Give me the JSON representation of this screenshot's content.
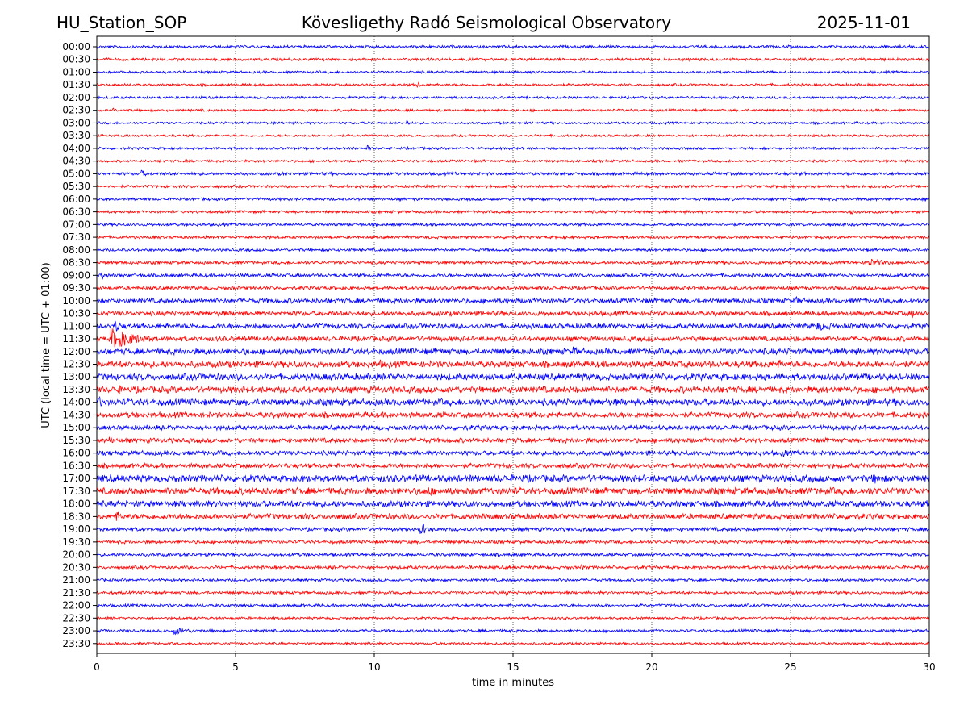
{
  "header": {
    "station": "HU_Station_SOP",
    "observatory": "Kövesligethy Radó Seismological Observatory",
    "date": "2025-11-01"
  },
  "chart_data": {
    "type": "line",
    "title": "Kövesligethy Radó Seismological Observatory",
    "xlabel": "time in minutes",
    "ylabel": "UTC (local time = UTC + 01:00)",
    "xlim": [
      0,
      30
    ],
    "x_ticks": [
      0,
      5,
      10,
      15,
      20,
      25,
      30
    ],
    "x_tick_labels": [
      "0",
      "5",
      "10",
      "15",
      "20",
      "25",
      "30"
    ],
    "grid": "vertical dotted lines at x ticks",
    "series_colors": [
      "#0000ff",
      "#ff0000"
    ],
    "rows": [
      {
        "label": "00:00",
        "amplitude": 0.18,
        "events": []
      },
      {
        "label": "00:30",
        "amplitude": 0.18,
        "events": []
      },
      {
        "label": "01:00",
        "amplitude": 0.16,
        "events": []
      },
      {
        "label": "01:30",
        "amplitude": 0.16,
        "events": [
          {
            "t": 11.6,
            "amp": 0.35,
            "dur": 0.2
          }
        ]
      },
      {
        "label": "02:00",
        "amplitude": 0.16,
        "events": []
      },
      {
        "label": "02:30",
        "amplitude": 0.16,
        "events": [
          {
            "t": 0.6,
            "amp": 0.35,
            "dur": 0.3
          }
        ]
      },
      {
        "label": "03:00",
        "amplitude": 0.15,
        "events": [
          {
            "t": 11.2,
            "amp": 0.3,
            "dur": 0.4
          }
        ]
      },
      {
        "label": "03:30",
        "amplitude": 0.15,
        "events": []
      },
      {
        "label": "04:00",
        "amplitude": 0.16,
        "events": [
          {
            "t": 9.8,
            "amp": 0.35,
            "dur": 0.2
          }
        ]
      },
      {
        "label": "04:30",
        "amplitude": 0.16,
        "events": []
      },
      {
        "label": "05:00",
        "amplitude": 0.2,
        "events": [
          {
            "t": 1.6,
            "amp": 0.45,
            "dur": 0.5
          }
        ]
      },
      {
        "label": "05:30",
        "amplitude": 0.18,
        "events": []
      },
      {
        "label": "06:00",
        "amplitude": 0.18,
        "events": []
      },
      {
        "label": "06:30",
        "amplitude": 0.18,
        "events": [
          {
            "t": 27.2,
            "amp": 0.5,
            "dur": 0.15
          }
        ]
      },
      {
        "label": "07:00",
        "amplitude": 0.18,
        "events": []
      },
      {
        "label": "07:30",
        "amplitude": 0.18,
        "events": []
      },
      {
        "label": "08:00",
        "amplitude": 0.18,
        "events": []
      },
      {
        "label": "08:30",
        "amplitude": 0.2,
        "events": [
          {
            "t": 27.8,
            "amp": 0.5,
            "dur": 2.0
          }
        ]
      },
      {
        "label": "09:00",
        "amplitude": 0.22,
        "events": [
          {
            "t": 0.2,
            "amp": 0.4,
            "dur": 0.8
          }
        ]
      },
      {
        "label": "09:30",
        "amplitude": 0.22,
        "events": []
      },
      {
        "label": "10:00",
        "amplitude": 0.3,
        "events": [
          {
            "t": 25.2,
            "amp": 0.5,
            "dur": 0.6
          }
        ]
      },
      {
        "label": "10:30",
        "amplitude": 0.3,
        "events": [
          {
            "t": 29.4,
            "amp": 0.5,
            "dur": 0.4
          }
        ]
      },
      {
        "label": "11:00",
        "amplitude": 0.32,
        "events": [
          {
            "t": 0.7,
            "amp": 0.7,
            "dur": 0.6
          },
          {
            "t": 26.0,
            "amp": 0.5,
            "dur": 3.0
          }
        ]
      },
      {
        "label": "11:30",
        "amplitude": 0.32,
        "events": [
          {
            "t": 0.55,
            "amp": 1.2,
            "dur": 2.5
          }
        ]
      },
      {
        "label": "12:00",
        "amplitude": 0.38,
        "events": [
          {
            "t": 17.2,
            "amp": 0.55,
            "dur": 0.8
          }
        ]
      },
      {
        "label": "12:30",
        "amplitude": 0.42,
        "events": [
          {
            "t": 10.2,
            "amp": 0.6,
            "dur": 0.6
          },
          {
            "t": 24.6,
            "amp": 0.55,
            "dur": 0.8
          }
        ]
      },
      {
        "label": "13:00",
        "amplitude": 0.42,
        "events": []
      },
      {
        "label": "13:30",
        "amplitude": 0.42,
        "events": [
          {
            "t": 0.8,
            "amp": 0.6,
            "dur": 0.4
          }
        ]
      },
      {
        "label": "14:00",
        "amplitude": 0.42,
        "events": [
          {
            "t": 0.1,
            "amp": 0.6,
            "dur": 0.6
          }
        ]
      },
      {
        "label": "14:30",
        "amplitude": 0.36,
        "events": []
      },
      {
        "label": "15:00",
        "amplitude": 0.3,
        "events": []
      },
      {
        "label": "15:30",
        "amplitude": 0.3,
        "events": [
          {
            "t": 0.5,
            "amp": 0.5,
            "dur": 0.3
          }
        ]
      },
      {
        "label": "16:00",
        "amplitude": 0.3,
        "events": [
          {
            "t": 24.8,
            "amp": 0.5,
            "dur": 0.4
          }
        ]
      },
      {
        "label": "16:30",
        "amplitude": 0.3,
        "events": []
      },
      {
        "label": "17:00",
        "amplitude": 0.45,
        "events": [
          {
            "t": 28.0,
            "amp": 0.6,
            "dur": 2.0
          }
        ]
      },
      {
        "label": "17:30",
        "amplitude": 0.45,
        "events": [
          {
            "t": 12.0,
            "amp": 0.65,
            "dur": 0.6
          }
        ]
      },
      {
        "label": "18:00",
        "amplitude": 0.4,
        "events": []
      },
      {
        "label": "18:30",
        "amplitude": 0.36,
        "events": [
          {
            "t": 0.7,
            "amp": 0.7,
            "dur": 0.6
          }
        ]
      },
      {
        "label": "19:00",
        "amplitude": 0.24,
        "events": [
          {
            "t": 11.7,
            "amp": 0.8,
            "dur": 0.6
          }
        ]
      },
      {
        "label": "19:30",
        "amplitude": 0.2,
        "events": []
      },
      {
        "label": "20:00",
        "amplitude": 0.2,
        "events": []
      },
      {
        "label": "20:30",
        "amplitude": 0.2,
        "events": [
          {
            "t": 17.5,
            "amp": 0.35,
            "dur": 0.4
          }
        ]
      },
      {
        "label": "21:00",
        "amplitude": 0.18,
        "events": []
      },
      {
        "label": "21:30",
        "amplitude": 0.18,
        "events": [
          {
            "t": 14.8,
            "amp": 0.3,
            "dur": 0.3
          }
        ]
      },
      {
        "label": "22:00",
        "amplitude": 0.18,
        "events": []
      },
      {
        "label": "22:30",
        "amplitude": 0.15,
        "events": []
      },
      {
        "label": "23:00",
        "amplitude": 0.18,
        "events": [
          {
            "t": 2.8,
            "amp": 0.45,
            "dur": 1.8
          }
        ]
      },
      {
        "label": "23:30",
        "amplitude": 0.15,
        "events": []
      }
    ]
  }
}
